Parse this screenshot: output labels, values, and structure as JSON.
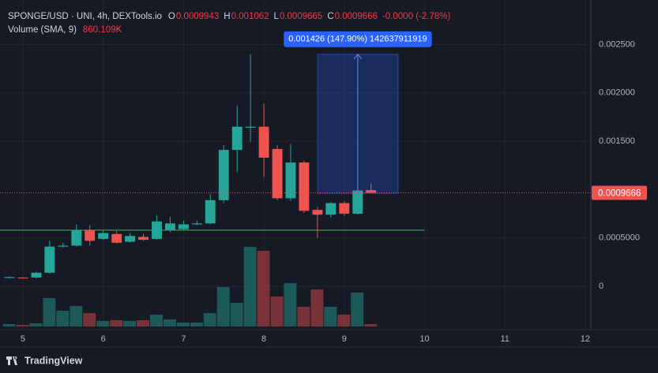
{
  "header": {
    "symbol": "SPONGE/USD · UNI, 4h, DEXTools.io",
    "ohlc": [
      {
        "key": "O",
        "value": "0.0009943"
      },
      {
        "key": "H",
        "value": "0.001062"
      },
      {
        "key": "L",
        "value": "0.0009665"
      },
      {
        "key": "C",
        "value": "0.0009666"
      }
    ],
    "change": "-0.0000 (-2.78%)",
    "volume_label": "Volume (SMA, 9)",
    "volume_value": "860.109K"
  },
  "footer": {
    "brand": "TradingView"
  },
  "chart_data": {
    "type": "candlestick",
    "x": [
      4.833,
      5.0,
      5.167,
      5.333,
      5.5,
      5.667,
      5.833,
      6.0,
      6.167,
      6.333,
      6.5,
      6.667,
      6.833,
      7.0,
      7.167,
      7.333,
      7.5,
      7.667,
      7.833,
      8.0,
      8.167,
      8.333,
      8.5,
      8.667,
      8.833,
      9.0,
      9.167,
      9.333
    ],
    "open": [
      8.5e-05,
      9e-05,
      9e-05,
      0.00014,
      0.00041,
      0.00042,
      0.00058,
      0.00049,
      0.00054,
      0.00046,
      0.00051,
      0.00049,
      0.00058,
      0.00059,
      0.00064,
      0.00065,
      0.00089,
      0.00141,
      0.00164,
      0.00165,
      0.00142,
      0.00091,
      0.00128,
      0.00079,
      0.00074,
      0.00086,
      0.00075,
      0.0009943
    ],
    "high": [
      0.0001,
      9.5e-05,
      0.00015,
      0.00047,
      0.00045,
      0.00064,
      0.00063,
      0.00058,
      0.00057,
      0.00055,
      0.00054,
      0.00073,
      0.00072,
      0.00068,
      0.00068,
      0.00095,
      0.00146,
      0.00187,
      0.0024,
      0.00189,
      0.00146,
      0.00147,
      0.0013,
      0.00082,
      0.00087,
      0.00088,
      0.001,
      0.001062
    ],
    "low": [
      8e-05,
      8e-05,
      8e-05,
      0.00013,
      0.0004,
      0.00041,
      0.00042,
      0.00048,
      0.00044,
      0.00045,
      0.00047,
      0.00048,
      0.00056,
      0.00058,
      0.00063,
      0.00064,
      0.00086,
      0.00118,
      0.00149,
      0.00113,
      0.00089,
      0.00088,
      0.00076,
      0.0005,
      0.00071,
      0.00073,
      0.00074,
      0.0009665
    ],
    "close": [
      9.5e-05,
      8.5e-05,
      0.00014,
      0.00041,
      0.00042,
      0.00058,
      0.00047,
      0.00055,
      0.00045,
      0.00052,
      0.00048,
      0.00067,
      0.00065,
      0.00064,
      0.00065,
      0.00089,
      0.00141,
      0.00165,
      0.00165,
      0.00133,
      0.00091,
      0.00128,
      0.00078,
      0.00074,
      0.00086,
      0.00075,
      0.00099,
      0.0009666
    ],
    "volume": [
      300,
      200,
      400,
      3600,
      2000,
      2600,
      1700,
      700,
      800,
      700,
      800,
      1500,
      900,
      500,
      500,
      1700,
      5000,
      3000,
      10100,
      9600,
      3800,
      5500,
      2500,
      4700,
      2500,
      1500,
      4300,
      300
    ],
    "up_color": "#26a69a",
    "down_color": "#ef5350",
    "xlim": [
      4.715,
      12.07
    ],
    "xticks": [
      5,
      6,
      7,
      8,
      9,
      10,
      11,
      12
    ],
    "ylim": [
      -0.000449,
      0.002961
    ],
    "yticks": [
      {
        "value": 0,
        "label": "0"
      },
      {
        "value": 0.0005,
        "label": "0.0005000"
      },
      {
        "value": 0.0015,
        "label": "0.001500"
      },
      {
        "value": 0.002,
        "label": "0.002000"
      },
      {
        "value": 0.0025,
        "label": "0.002500"
      }
    ],
    "vlim": [
      0,
      15000
    ],
    "grid": true,
    "last_price": {
      "value": 0.0009666,
      "label": "0.0009666"
    },
    "hline": {
      "value": 0.00058,
      "x": [
        4.715,
        10.0
      ]
    },
    "measure": {
      "label": "0.001426 (147.90%) 142637911919",
      "from": 0.00096,
      "to": 0.0024,
      "x": [
        8.667,
        9.67
      ]
    }
  }
}
